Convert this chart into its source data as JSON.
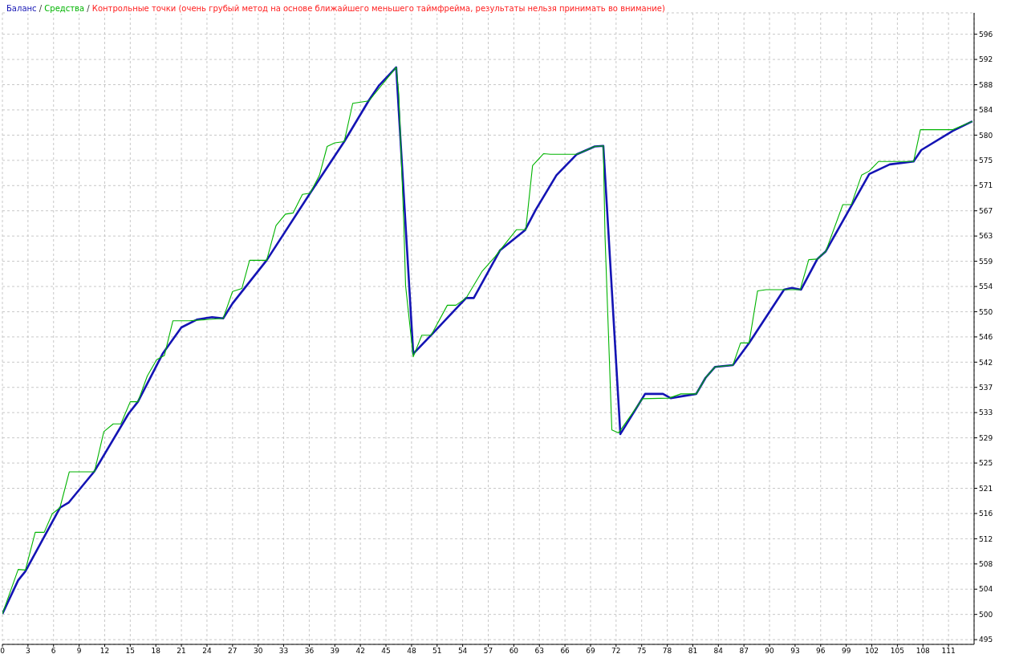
{
  "chart_data": {
    "type": "line",
    "annotations": [
      "/",
      "/",
      "Контрольные точки (очень грубый метод на основе ближайшего меньшего таймфрейма, результаты нельзя принимать во внимание)"
    ],
    "series": [
      {
        "name": "Баланс",
        "color": "#1414b4",
        "x": [
          0,
          1.85,
          2.7,
          6.75,
          7.8,
          10.8,
          14.8,
          15.9,
          18.8,
          21,
          22.8,
          24.6,
          25.9,
          27,
          31,
          36.1,
          40.1,
          43,
          44.2,
          46.2,
          48.2,
          50.3,
          54.4,
          55.3,
          58.4,
          61.3,
          62.6,
          65,
          67.4,
          69.5,
          70.5,
          72.5,
          75.4,
          77.5,
          78.4,
          81.4,
          82.5,
          83.6,
          85.7,
          87.6,
          91.7,
          92.6,
          93.7,
          95.6,
          96.6,
          101.7,
          104.1,
          106.9,
          107.8,
          111.5,
          113.8
        ],
        "values": [
          499.7,
          505.3,
          506.8,
          517.4,
          518.3,
          523.5,
          533.1,
          535.1,
          543.1,
          547.5,
          548.8,
          549.2,
          549.0,
          551.5,
          558.7,
          569.9,
          578.5,
          585.4,
          587.9,
          590.9,
          543.1,
          546.2,
          552.4,
          552.4,
          560.4,
          563.7,
          567.2,
          572.9,
          576.4,
          577.7,
          577.8,
          529.7,
          536.4,
          536.4,
          535.7,
          536.4,
          539.1,
          540.9,
          541.2,
          544.9,
          553.8,
          554.1,
          553.8,
          558.9,
          560.2,
          573.1,
          574.7,
          575.2,
          577.1,
          580.3,
          581.9
        ]
      },
      {
        "name": "Средства",
        "color": "#00b400",
        "x": [
          0,
          1.85,
          2.7,
          3.85,
          4.9,
          5.85,
          6.75,
          7.85,
          10.8,
          11.9,
          13,
          13.9,
          15,
          15.9,
          17,
          18.1,
          19,
          20,
          21.9,
          25.9,
          27,
          28.1,
          29,
          31,
          32.1,
          33.2,
          34.1,
          35.2,
          36.1,
          37.2,
          38.1,
          39,
          40.1,
          41.1,
          43,
          46.2,
          46.5,
          47.1,
          47.3,
          48.2,
          49.2,
          50.3,
          52.2,
          53.2,
          54.4,
          56.3,
          57.8,
          58.4,
          60.3,
          61.4,
          62.2,
          63.5,
          64.3,
          67.4,
          69.5,
          70.5,
          70.7,
          71.5,
          72.3,
          75.1,
          78.2,
          79.6,
          81.4,
          82.5,
          83.6,
          85.7,
          86.6,
          87.6,
          88.6,
          89.6,
          93.6,
          94.6,
          95.6,
          96.6,
          98.6,
          99.6,
          100.8,
          101.7,
          102.8,
          106.9,
          107.7,
          111.5,
          113.8
        ],
        "values": [
          499.7,
          507.1,
          507.0,
          513.3,
          513.3,
          516.4,
          517.4,
          523.4,
          523.4,
          530.1,
          531.4,
          531.4,
          535.1,
          535.1,
          539.4,
          542.1,
          542.8,
          548.6,
          548.6,
          549.0,
          553.5,
          554.0,
          558.7,
          558.7,
          564.5,
          566.4,
          566.6,
          569.7,
          569.9,
          572.9,
          577.7,
          578.3,
          578.5,
          584.9,
          585.3,
          590.9,
          586.5,
          564.6,
          554.5,
          542.6,
          546.2,
          546.2,
          551.2,
          551.2,
          552.4,
          556.9,
          559.3,
          560.4,
          563.8,
          563.8,
          574.5,
          576.5,
          576.4,
          576.4,
          577.7,
          577.8,
          562.7,
          530.4,
          529.9,
          535.6,
          535.7,
          536.4,
          536.4,
          539.1,
          540.9,
          541.2,
          544.9,
          544.9,
          553.6,
          553.8,
          553.8,
          558.8,
          558.9,
          560.2,
          568.0,
          568.0,
          572.9,
          573.6,
          575.2,
          575.2,
          580.5,
          580.5,
          581.9
        ]
      }
    ],
    "xlim": [
      0,
      114
    ],
    "xticks": [
      0,
      3,
      6,
      9,
      12,
      15,
      18,
      21,
      24,
      27,
      30,
      33,
      36,
      39,
      42,
      45,
      48,
      51,
      54,
      57,
      60,
      63,
      66,
      69,
      72,
      75,
      78,
      81,
      84,
      87,
      90,
      93,
      96,
      99,
      102,
      105,
      108,
      111
    ],
    "ylim": [
      494.6,
      600
    ],
    "yticks": [
      {
        "value": 495.39,
        "label": "495"
      },
      {
        "value": 499.6,
        "label": "500"
      },
      {
        "value": 503.81,
        "label": "504"
      },
      {
        "value": 508.02,
        "label": "508"
      },
      {
        "value": 512.23,
        "label": "512"
      },
      {
        "value": 516.44,
        "label": "516"
      },
      {
        "value": 520.65,
        "label": "521"
      },
      {
        "value": 524.86,
        "label": "525"
      },
      {
        "value": 529.07,
        "label": "529"
      },
      {
        "value": 533.28,
        "label": "533"
      },
      {
        "value": 537.49,
        "label": "537"
      },
      {
        "value": 541.7,
        "label": "542"
      },
      {
        "value": 545.91,
        "label": "546"
      },
      {
        "value": 550.12,
        "label": "550"
      },
      {
        "value": 554.33,
        "label": "554"
      },
      {
        "value": 558.54,
        "label": "559"
      },
      {
        "value": 562.75,
        "label": "563"
      },
      {
        "value": 566.96,
        "label": "567"
      },
      {
        "value": 571.17,
        "label": "571"
      },
      {
        "value": 575.38,
        "label": "575"
      },
      {
        "value": 579.59,
        "label": "580"
      },
      {
        "value": 583.8,
        "label": "584"
      },
      {
        "value": 588.01,
        "label": "588"
      },
      {
        "value": 592.22,
        "label": "592"
      },
      {
        "value": 596.43,
        "label": "596"
      }
    ],
    "grid": true,
    "legend": "top left",
    "marker": "none",
    "line_style": "solid"
  }
}
